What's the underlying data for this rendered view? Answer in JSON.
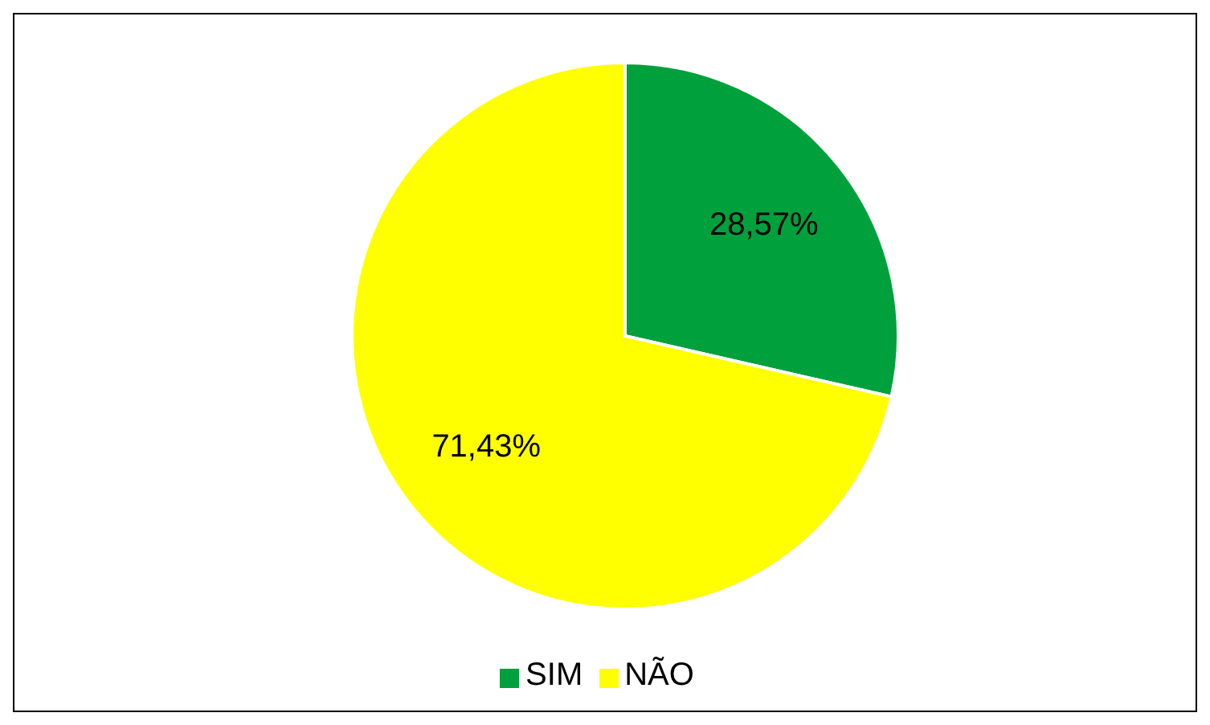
{
  "chart_data": {
    "type": "pie",
    "categories": [
      "SIM",
      "NÃO"
    ],
    "values": [
      28.57,
      71.43
    ],
    "colors": [
      "#00a03c",
      "#ffff00"
    ],
    "value_labels": [
      "28,57%",
      "71,43%"
    ],
    "legend": "bottom"
  }
}
